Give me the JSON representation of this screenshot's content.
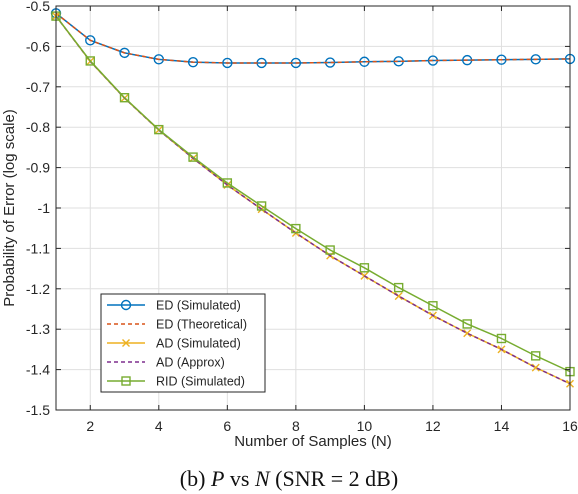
{
  "chart_data": {
    "type": "line",
    "xlabel": "Number of Samples (N)",
    "ylabel": "Probability of Error (log scale)",
    "xlim": [
      1,
      16
    ],
    "ylim": [
      -1.5,
      -0.5
    ],
    "xticks": [
      "2",
      "4",
      "6",
      "8",
      "10",
      "12",
      "14",
      "16"
    ],
    "yticks": [
      "-0.5",
      "-0.6",
      "-0.7",
      "-0.8",
      "-0.9",
      "-1",
      "-1.1",
      "-1.2",
      "-1.3",
      "-1.4",
      "-1.5"
    ],
    "grid": true,
    "legend_position": "bottom-left",
    "x": [
      1,
      2,
      3,
      4,
      5,
      6,
      7,
      8,
      9,
      10,
      11,
      12,
      13,
      14,
      15,
      16
    ],
    "series": [
      {
        "name": "ED (Simulated)",
        "color": "#0072BD",
        "style": "solid",
        "marker": "circle",
        "values": [
          -0.518,
          -0.585,
          -0.616,
          -0.632,
          -0.639,
          -0.641,
          -0.641,
          -0.641,
          -0.64,
          -0.638,
          -0.637,
          -0.635,
          -0.634,
          -0.633,
          -0.632,
          -0.631
        ]
      },
      {
        "name": "ED (Theoretical)",
        "color": "#D95319",
        "style": "dashed",
        "marker": "none",
        "values": [
          -0.518,
          -0.585,
          -0.616,
          -0.632,
          -0.639,
          -0.641,
          -0.641,
          -0.641,
          -0.64,
          -0.638,
          -0.637,
          -0.635,
          -0.634,
          -0.633,
          -0.632,
          -0.631
        ]
      },
      {
        "name": "AD (Simulated)",
        "color": "#EDB120",
        "style": "solid",
        "marker": "x",
        "values": [
          -0.525,
          -0.637,
          -0.728,
          -0.807,
          -0.877,
          -0.943,
          -1.003,
          -1.062,
          -1.118,
          -1.168,
          -1.218,
          -1.266,
          -1.31,
          -1.35,
          -1.395,
          -1.435
        ]
      },
      {
        "name": "AD (Approx)",
        "color": "#7E2F8E",
        "style": "dashed",
        "marker": "none",
        "values": [
          -0.525,
          -0.637,
          -0.728,
          -0.807,
          -0.877,
          -0.943,
          -1.003,
          -1.062,
          -1.118,
          -1.168,
          -1.218,
          -1.266,
          -1.31,
          -1.35,
          -1.395,
          -1.435
        ]
      },
      {
        "name": "RID (Simulated)",
        "color": "#77AC30",
        "style": "solid",
        "marker": "square",
        "values": [
          -0.525,
          -0.636,
          -0.727,
          -0.806,
          -0.874,
          -0.938,
          -0.995,
          -1.051,
          -1.104,
          -1.148,
          -1.197,
          -1.242,
          -1.287,
          -1.323,
          -1.366,
          -1.405
        ]
      }
    ]
  },
  "caption": {
    "prefix": "(b) ",
    "symbol_p": "P",
    "vs": " vs ",
    "symbol_n": "N",
    "suffix": " (SNR = 2 dB)"
  }
}
